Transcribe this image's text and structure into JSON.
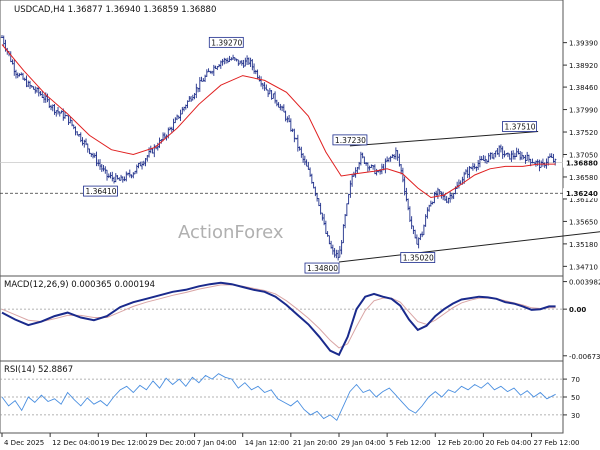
{
  "chart_data": {
    "type": "candlestick",
    "symbol_header": "USDCAD,H4  1.36877 1.36940 1.36859 1.36880",
    "watermark": "ActionForex",
    "colors": {
      "price": "#1f2f8a",
      "ma": "#e02020",
      "macd": "#1a2a8c",
      "signal": "#d9a5a5",
      "rsi": "#4a8fe0",
      "grid": "#9a9a9a"
    },
    "x_axis": {
      "tick_labels": [
        "4 Dec 2025",
        "12 Dec 04:00",
        "19 Dec 12:00",
        "29 Dec 20:00",
        "7 Jan 04:00",
        "14 Jan 12:00",
        "21 Jan 20:00",
        "29 Jan 04:00",
        "5 Feb 12:00",
        "12 Feb 20:00",
        "20 Feb 04:00",
        "27 Feb 12:00"
      ],
      "tick_index": [
        0,
        44,
        88,
        132,
        176,
        220,
        264,
        308,
        352,
        396,
        440,
        484
      ]
    },
    "price_panel": {
      "ylim": [
        1.3455,
        1.4024
      ],
      "y_ticks": [
        "1.39390",
        "1.38920",
        "1.38460",
        "1.37990",
        "1.37520",
        "1.37050",
        "1.36580",
        "1.36120",
        "1.35650",
        "1.35180",
        "1.34710"
      ],
      "current_price": "1.36880",
      "horizontal_level": "1.36240",
      "labels": [
        {
          "text": "1.39270",
          "x": 205,
          "y": 1.3927
        },
        {
          "text": "1.36410",
          "x": 90,
          "y": 1.3641
        },
        {
          "text": "1.37230",
          "x": 318,
          "y": 1.3723
        },
        {
          "text": "1.37510",
          "x": 473,
          "y": 1.3751
        },
        {
          "text": "1.35020",
          "x": 380,
          "y": 1.3502
        },
        {
          "text": "1.34800",
          "x": 308,
          "y": 1.348
        }
      ],
      "channel_upper": [
        [
          318,
          1.3723
        ],
        [
          490,
          1.3753
        ]
      ],
      "channel_lower": [
        [
          308,
          1.348
        ],
        [
          505,
          1.354
        ]
      ],
      "closes": [
        [
          0,
          1.395
        ],
        [
          12,
          1.388
        ],
        [
          24,
          1.385
        ],
        [
          36,
          1.383
        ],
        [
          48,
          1.38
        ],
        [
          60,
          1.378
        ],
        [
          72,
          1.374
        ],
        [
          84,
          1.37
        ],
        [
          96,
          1.366
        ],
        [
          108,
          1.365
        ],
        [
          120,
          1.3668
        ],
        [
          132,
          1.37
        ],
        [
          144,
          1.373
        ],
        [
          156,
          1.3765
        ],
        [
          168,
          1.381
        ],
        [
          180,
          1.385
        ],
        [
          190,
          1.388
        ],
        [
          200,
          1.39
        ],
        [
          210,
          1.3905
        ],
        [
          218,
          1.3895
        ],
        [
          226,
          1.39
        ],
        [
          234,
          1.387
        ],
        [
          242,
          1.384
        ],
        [
          250,
          1.382
        ],
        [
          258,
          1.379
        ],
        [
          266,
          1.375
        ],
        [
          274,
          1.37
        ],
        [
          282,
          1.366
        ],
        [
          290,
          1.36
        ],
        [
          296,
          1.354
        ],
        [
          302,
          1.35
        ],
        [
          308,
          1.349
        ],
        [
          314,
          1.358
        ],
        [
          320,
          1.366
        ],
        [
          328,
          1.37
        ],
        [
          336,
          1.368
        ],
        [
          344,
          1.3665
        ],
        [
          352,
          1.369
        ],
        [
          360,
          1.371
        ],
        [
          366,
          1.366
        ],
        [
          372,
          1.358
        ],
        [
          378,
          1.352
        ],
        [
          384,
          1.354
        ],
        [
          390,
          1.36
        ],
        [
          398,
          1.3625
        ],
        [
          406,
          1.361
        ],
        [
          414,
          1.363
        ],
        [
          422,
          1.366
        ],
        [
          430,
          1.368
        ],
        [
          438,
          1.369
        ],
        [
          446,
          1.37
        ],
        [
          454,
          1.3715
        ],
        [
          462,
          1.37
        ],
        [
          470,
          1.3705
        ],
        [
          478,
          1.37
        ],
        [
          486,
          1.369
        ],
        [
          494,
          1.368
        ],
        [
          500,
          1.37
        ],
        [
          506,
          1.3688
        ]
      ],
      "ma": [
        [
          0,
          1.3935
        ],
        [
          20,
          1.388
        ],
        [
          40,
          1.383
        ],
        [
          60,
          1.379
        ],
        [
          80,
          1.3745
        ],
        [
          100,
          1.3715
        ],
        [
          120,
          1.3705
        ],
        [
          140,
          1.372
        ],
        [
          160,
          1.376
        ],
        [
          180,
          1.381
        ],
        [
          200,
          1.385
        ],
        [
          220,
          1.387
        ],
        [
          240,
          1.386
        ],
        [
          260,
          1.3835
        ],
        [
          280,
          1.3785
        ],
        [
          296,
          1.371
        ],
        [
          310,
          1.366
        ],
        [
          324,
          1.3665
        ],
        [
          340,
          1.367
        ],
        [
          352,
          1.3675
        ],
        [
          366,
          1.3665
        ],
        [
          380,
          1.3635
        ],
        [
          392,
          1.3615
        ],
        [
          404,
          1.362
        ],
        [
          418,
          1.364
        ],
        [
          432,
          1.3662
        ],
        [
          446,
          1.3675
        ],
        [
          460,
          1.368
        ],
        [
          476,
          1.368
        ],
        [
          490,
          1.3685
        ],
        [
          506,
          1.3685
        ]
      ]
    },
    "macd_panel": {
      "title": "MACD(12,26,9) 0.000365 0.000194",
      "ylim": [
        -0.0072,
        0.0045
      ],
      "y_ticks": [
        "0.003982",
        "0.00",
        "-0.006737"
      ],
      "macd": [
        [
          0,
          -0.0005
        ],
        [
          12,
          -0.0015
        ],
        [
          24,
          -0.0023
        ],
        [
          36,
          -0.0018
        ],
        [
          48,
          -0.001
        ],
        [
          60,
          -0.0005
        ],
        [
          72,
          -0.0012
        ],
        [
          84,
          -0.0016
        ],
        [
          96,
          -0.001
        ],
        [
          108,
          0.0003
        ],
        [
          120,
          0.001
        ],
        [
          132,
          0.0015
        ],
        [
          144,
          0.002
        ],
        [
          156,
          0.0025
        ],
        [
          168,
          0.0028
        ],
        [
          180,
          0.0033
        ],
        [
          190,
          0.0036
        ],
        [
          200,
          0.0038
        ],
        [
          210,
          0.0036
        ],
        [
          220,
          0.0032
        ],
        [
          230,
          0.0028
        ],
        [
          240,
          0.0025
        ],
        [
          250,
          0.0018
        ],
        [
          260,
          0.0006
        ],
        [
          270,
          -0.0008
        ],
        [
          280,
          -0.0022
        ],
        [
          290,
          -0.004
        ],
        [
          300,
          -0.006
        ],
        [
          308,
          -0.0066
        ],
        [
          316,
          -0.004
        ],
        [
          324,
          0.0
        ],
        [
          332,
          0.0018
        ],
        [
          340,
          0.0022
        ],
        [
          348,
          0.0018
        ],
        [
          356,
          0.0015
        ],
        [
          364,
          0.0005
        ],
        [
          372,
          -0.0015
        ],
        [
          380,
          -0.003
        ],
        [
          388,
          -0.0024
        ],
        [
          396,
          -0.001
        ],
        [
          404,
          0.0
        ],
        [
          412,
          0.0008
        ],
        [
          420,
          0.0014
        ],
        [
          428,
          0.0016
        ],
        [
          436,
          0.0018
        ],
        [
          444,
          0.0017
        ],
        [
          452,
          0.0015
        ],
        [
          460,
          0.001
        ],
        [
          468,
          0.0008
        ],
        [
          476,
          0.0004
        ],
        [
          484,
          -0.0001
        ],
        [
          492,
          0.0
        ],
        [
          500,
          0.0004
        ],
        [
          506,
          0.0004
        ]
      ],
      "signal": [
        [
          0,
          0.0
        ],
        [
          12,
          -0.0008
        ],
        [
          24,
          -0.0016
        ],
        [
          36,
          -0.0018
        ],
        [
          48,
          -0.0014
        ],
        [
          60,
          -0.0009
        ],
        [
          72,
          -0.0009
        ],
        [
          84,
          -0.0012
        ],
        [
          96,
          -0.0012
        ],
        [
          108,
          -0.0004
        ],
        [
          120,
          0.0004
        ],
        [
          132,
          0.001
        ],
        [
          144,
          0.0015
        ],
        [
          156,
          0.002
        ],
        [
          168,
          0.0024
        ],
        [
          180,
          0.0029
        ],
        [
          190,
          0.0032
        ],
        [
          200,
          0.0035
        ],
        [
          210,
          0.0035
        ],
        [
          220,
          0.0033
        ],
        [
          230,
          0.003
        ],
        [
          240,
          0.0027
        ],
        [
          250,
          0.0022
        ],
        [
          260,
          0.0012
        ],
        [
          270,
          0.0
        ],
        [
          280,
          -0.0013
        ],
        [
          290,
          -0.0028
        ],
        [
          300,
          -0.0045
        ],
        [
          308,
          -0.0056
        ],
        [
          316,
          -0.005
        ],
        [
          324,
          -0.0025
        ],
        [
          332,
          -0.0002
        ],
        [
          340,
          0.0012
        ],
        [
          348,
          0.0016
        ],
        [
          356,
          0.0016
        ],
        [
          364,
          0.001
        ],
        [
          372,
          -0.0004
        ],
        [
          380,
          -0.0018
        ],
        [
          388,
          -0.0022
        ],
        [
          396,
          -0.0016
        ],
        [
          404,
          -0.0007
        ],
        [
          412,
          0.0002
        ],
        [
          420,
          0.0009
        ],
        [
          428,
          0.0013
        ],
        [
          436,
          0.0016
        ],
        [
          444,
          0.0016
        ],
        [
          452,
          0.0015
        ],
        [
          460,
          0.0012
        ],
        [
          468,
          0.0009
        ],
        [
          476,
          0.0006
        ],
        [
          484,
          0.0002
        ],
        [
          492,
          0.0001
        ],
        [
          500,
          0.0002
        ],
        [
          506,
          0.0002
        ]
      ]
    },
    "rsi_panel": {
      "title": "RSI(14) 52.8867",
      "ylim": [
        12,
        88
      ],
      "y_ticks": [
        "70",
        "50",
        "30"
      ],
      "levels": [
        30,
        50,
        70
      ],
      "rsi": [
        [
          0,
          50
        ],
        [
          6,
          40
        ],
        [
          12,
          46
        ],
        [
          18,
          35
        ],
        [
          24,
          50
        ],
        [
          30,
          44
        ],
        [
          36,
          52
        ],
        [
          42,
          45
        ],
        [
          48,
          48
        ],
        [
          54,
          42
        ],
        [
          60,
          55
        ],
        [
          66,
          47
        ],
        [
          72,
          40
        ],
        [
          78,
          49
        ],
        [
          84,
          42
        ],
        [
          90,
          46
        ],
        [
          96,
          40
        ],
        [
          102,
          50
        ],
        [
          108,
          58
        ],
        [
          114,
          62
        ],
        [
          120,
          55
        ],
        [
          126,
          63
        ],
        [
          132,
          58
        ],
        [
          138,
          68
        ],
        [
          144,
          60
        ],
        [
          150,
          71
        ],
        [
          156,
          64
        ],
        [
          162,
          70
        ],
        [
          168,
          62
        ],
        [
          174,
          72
        ],
        [
          180,
          66
        ],
        [
          186,
          74
        ],
        [
          192,
          70
        ],
        [
          198,
          76
        ],
        [
          204,
          72
        ],
        [
          210,
          70
        ],
        [
          216,
          60
        ],
        [
          222,
          66
        ],
        [
          228,
          58
        ],
        [
          234,
          62
        ],
        [
          240,
          55
        ],
        [
          246,
          58
        ],
        [
          252,
          48
        ],
        [
          258,
          44
        ],
        [
          264,
          40
        ],
        [
          270,
          46
        ],
        [
          276,
          36
        ],
        [
          282,
          30
        ],
        [
          288,
          34
        ],
        [
          294,
          26
        ],
        [
          300,
          30
        ],
        [
          306,
          24
        ],
        [
          312,
          40
        ],
        [
          318,
          56
        ],
        [
          324,
          64
        ],
        [
          330,
          55
        ],
        [
          336,
          58
        ],
        [
          342,
          50
        ],
        [
          348,
          56
        ],
        [
          354,
          60
        ],
        [
          360,
          52
        ],
        [
          366,
          44
        ],
        [
          372,
          36
        ],
        [
          378,
          32
        ],
        [
          384,
          40
        ],
        [
          390,
          50
        ],
        [
          396,
          56
        ],
        [
          402,
          50
        ],
        [
          408,
          58
        ],
        [
          414,
          55
        ],
        [
          420,
          62
        ],
        [
          426,
          58
        ],
        [
          432,
          64
        ],
        [
          438,
          60
        ],
        [
          444,
          66
        ],
        [
          450,
          58
        ],
        [
          456,
          62
        ],
        [
          462,
          56
        ],
        [
          468,
          60
        ],
        [
          474,
          52
        ],
        [
          480,
          57
        ],
        [
          486,
          50
        ],
        [
          492,
          55
        ],
        [
          498,
          48
        ],
        [
          506,
          53
        ]
      ]
    }
  }
}
